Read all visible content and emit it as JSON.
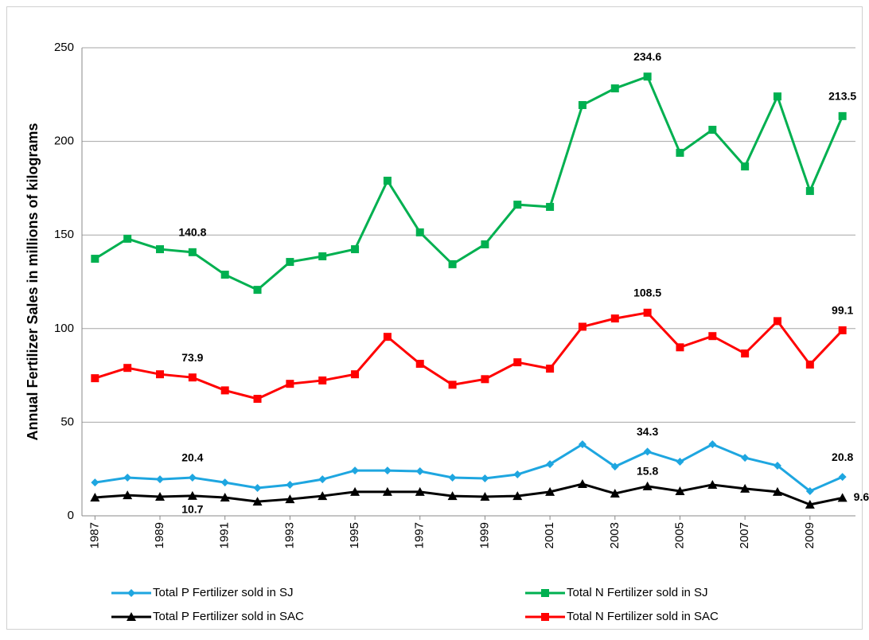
{
  "chart_data": {
    "type": "line",
    "y_label": "Annual Fertilizer Sales in millions of kilograms",
    "x": [
      1987,
      1988,
      1989,
      1990,
      1991,
      1992,
      1993,
      1994,
      1995,
      1996,
      1997,
      1998,
      1999,
      2000,
      2001,
      2002,
      2003,
      2004,
      2005,
      2006,
      2007,
      2008,
      2009,
      2010
    ],
    "xlim": [
      1986.6,
      2010.4
    ],
    "xticks": [
      1987,
      1989,
      1991,
      1993,
      1995,
      1997,
      1999,
      2001,
      2003,
      2005,
      2007,
      2009
    ],
    "ylim": [
      0,
      250
    ],
    "yticks": [
      0,
      50,
      100,
      150,
      200,
      250
    ],
    "grid": true,
    "legend": "bottom",
    "series": [
      {
        "name": "Total P Fertilizer sold in SJ",
        "color": "#1ea6e0",
        "marker": "diamond",
        "values": [
          17.8,
          20.4,
          19.5,
          20.4,
          17.8,
          14.9,
          16.6,
          19.5,
          24.2,
          24.2,
          23.8,
          20.4,
          20.0,
          22.1,
          27.6,
          38.2,
          26.3,
          34.3,
          28.9,
          38.2,
          31.0,
          26.8,
          13.2,
          20.8
        ],
        "value_labels": [
          null,
          null,
          null,
          "20.4",
          null,
          null,
          null,
          null,
          null,
          null,
          null,
          null,
          null,
          null,
          null,
          null,
          null,
          "34.3",
          null,
          null,
          null,
          null,
          null,
          "20.8"
        ]
      },
      {
        "name": "Total N Fertilizer sold in SJ",
        "color": "#00b050",
        "marker": "square",
        "values": [
          137.3,
          148.0,
          142.4,
          140.8,
          128.8,
          120.7,
          135.6,
          138.6,
          142.4,
          179.0,
          151.4,
          134.4,
          145.0,
          166.2,
          165.0,
          219.4,
          228.3,
          234.6,
          193.9,
          206.2,
          186.6,
          224.0,
          173.5,
          213.5
        ],
        "value_labels": [
          null,
          null,
          null,
          "140.8",
          null,
          null,
          null,
          null,
          null,
          null,
          null,
          null,
          null,
          null,
          null,
          null,
          null,
          "234.6",
          null,
          null,
          null,
          null,
          null,
          "213.5"
        ]
      },
      {
        "name": "Total P Fertilizer sold in SAC",
        "color": "#000000",
        "marker": "triangle",
        "values": [
          9.8,
          11.0,
          10.2,
          10.7,
          9.8,
          7.6,
          8.9,
          10.6,
          12.8,
          12.8,
          12.8,
          10.6,
          10.2,
          10.6,
          12.8,
          17.0,
          11.9,
          15.8,
          13.2,
          16.6,
          14.5,
          12.8,
          6.0,
          9.6
        ],
        "value_labels": [
          null,
          null,
          null,
          "10.7",
          null,
          null,
          null,
          null,
          null,
          null,
          null,
          null,
          null,
          null,
          null,
          null,
          null,
          "15.8",
          null,
          null,
          null,
          null,
          null,
          "9.6"
        ]
      },
      {
        "name": "Total N Fertilizer sold in SAC",
        "color": "#ff0000",
        "marker": "square",
        "values": [
          73.5,
          79.0,
          75.6,
          73.9,
          67.0,
          62.5,
          70.5,
          72.3,
          75.6,
          95.6,
          81.2,
          70.0,
          73.0,
          82.0,
          78.6,
          101.0,
          105.4,
          108.5,
          90.0,
          96.0,
          86.7,
          104.0,
          80.8,
          99.1
        ],
        "value_labels": [
          null,
          null,
          null,
          "73.9",
          null,
          null,
          null,
          null,
          null,
          null,
          null,
          null,
          null,
          null,
          null,
          null,
          null,
          "108.5",
          null,
          null,
          null,
          null,
          null,
          "99.1"
        ]
      }
    ]
  }
}
